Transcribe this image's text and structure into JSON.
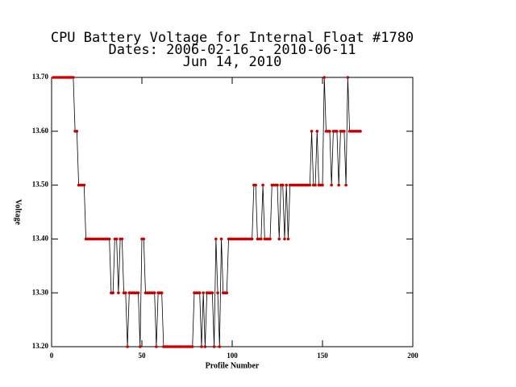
{
  "chart_data": {
    "type": "line",
    "title": "CPU Battery Voltage for Internal Float #1780",
    "subtitle": "Dates:  2006-02-16 -  2010-06-11",
    "date_label": "Jun 14, 2010",
    "x_label": "Profile Number",
    "y_label": "Voltage",
    "xlim": [
      0,
      200
    ],
    "xticks": [
      0,
      50,
      100,
      150,
      200
    ],
    "ylim": [
      13.2,
      13.7
    ],
    "yticks": [
      {
        "value": 13.2,
        "label": "13.20"
      },
      {
        "value": 13.3,
        "label": "13.30"
      },
      {
        "value": 13.4,
        "label": "13.40"
      },
      {
        "value": 13.5,
        "label": "13.50"
      },
      {
        "value": 13.6,
        "label": "13.60"
      },
      {
        "value": 13.7,
        "label": "13.70"
      }
    ],
    "line_color": "#000000",
    "marker_color": "#cc0000",
    "x": [
      1,
      2,
      3,
      4,
      5,
      6,
      7,
      8,
      9,
      10,
      11,
      12,
      13,
      14,
      15,
      16,
      17,
      18,
      19,
      20,
      21,
      22,
      23,
      24,
      25,
      26,
      27,
      28,
      29,
      30,
      31,
      32,
      33,
      34,
      35,
      36,
      37,
      38,
      39,
      40,
      41,
      42,
      43,
      44,
      45,
      46,
      47,
      48,
      49,
      50,
      51,
      52,
      53,
      54,
      55,
      56,
      57,
      58,
      59,
      60,
      61,
      62,
      63,
      64,
      65,
      66,
      67,
      68,
      69,
      70,
      71,
      72,
      73,
      74,
      75,
      76,
      77,
      78,
      79,
      80,
      81,
      82,
      83,
      84,
      85,
      86,
      87,
      88,
      89,
      90,
      91,
      92,
      93,
      94,
      95,
      96,
      97,
      98,
      99,
      100,
      101,
      102,
      103,
      104,
      105,
      106,
      107,
      108,
      109,
      110,
      111,
      112,
      113,
      114,
      115,
      116,
      117,
      118,
      119,
      120,
      121,
      122,
      123,
      124,
      125,
      126,
      127,
      128,
      129,
      130,
      131,
      132,
      133,
      134,
      135,
      136,
      137,
      138,
      139,
      140,
      141,
      142,
      143,
      144,
      145,
      146,
      147,
      148,
      149,
      150,
      151,
      152,
      153,
      154,
      155,
      156,
      157,
      158,
      159,
      160,
      161,
      162,
      163,
      164,
      165,
      166,
      167,
      168,
      169,
      170,
      171
    ],
    "values": [
      13.7,
      13.7,
      13.7,
      13.7,
      13.7,
      13.7,
      13.7,
      13.7,
      13.7,
      13.7,
      13.7,
      13.7,
      13.6,
      13.6,
      13.5,
      13.5,
      13.5,
      13.5,
      13.4,
      13.4,
      13.4,
      13.4,
      13.4,
      13.4,
      13.4,
      13.4,
      13.4,
      13.4,
      13.4,
      13.4,
      13.4,
      13.4,
      13.3,
      13.3,
      13.4,
      13.4,
      13.3,
      13.4,
      13.4,
      13.3,
      13.3,
      13.2,
      13.3,
      13.3,
      13.3,
      13.3,
      13.3,
      13.3,
      13.2,
      13.4,
      13.4,
      13.3,
      13.3,
      13.3,
      13.3,
      13.3,
      13.3,
      13.2,
      13.3,
      13.3,
      13.3,
      13.2,
      13.2,
      13.2,
      13.2,
      13.2,
      13.2,
      13.2,
      13.2,
      13.2,
      13.2,
      13.2,
      13.2,
      13.2,
      13.2,
      13.2,
      13.2,
      13.2,
      13.3,
      13.3,
      13.3,
      13.3,
      13.2,
      13.3,
      13.2,
      13.3,
      13.3,
      13.3,
      13.3,
      13.2,
      13.4,
      13.3,
      13.2,
      13.4,
      13.3,
      13.3,
      13.3,
      13.4,
      13.4,
      13.4,
      13.4,
      13.4,
      13.4,
      13.4,
      13.4,
      13.4,
      13.4,
      13.4,
      13.4,
      13.4,
      13.4,
      13.5,
      13.5,
      13.4,
      13.4,
      13.4,
      13.5,
      13.4,
      13.4,
      13.4,
      13.4,
      13.5,
      13.5,
      13.5,
      13.5,
      13.4,
      13.5,
      13.5,
      13.4,
      13.5,
      13.4,
      13.5,
      13.5,
      13.5,
      13.5,
      13.5,
      13.5,
      13.5,
      13.5,
      13.5,
      13.5,
      13.5,
      13.5,
      13.6,
      13.5,
      13.5,
      13.6,
      13.5,
      13.5,
      13.5,
      13.7,
      13.6,
      13.6,
      13.6,
      13.5,
      13.6,
      13.6,
      13.6,
      13.5,
      13.6,
      13.6,
      13.6,
      13.5,
      13.7,
      13.6,
      13.6,
      13.6,
      13.6,
      13.6,
      13.6,
      13.6
    ]
  }
}
